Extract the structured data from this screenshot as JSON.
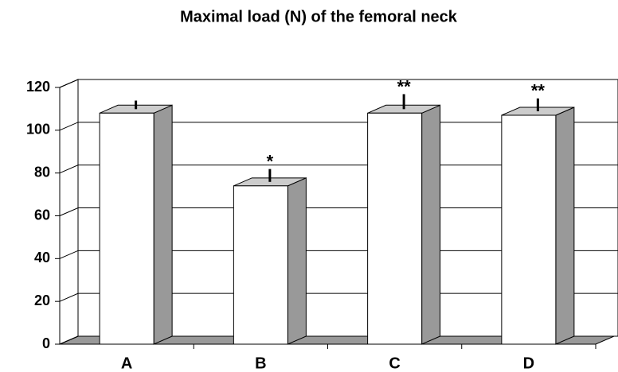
{
  "chart_data": {
    "type": "bar3d",
    "title": "Maximal load (N) of the femoral neck",
    "categories": [
      "A",
      "B",
      "C",
      "D"
    ],
    "values": [
      108,
      74,
      108,
      107
    ],
    "errors": [
      4,
      6,
      7,
      6
    ],
    "annotations": [
      null,
      "*",
      "**",
      "**"
    ],
    "color": "#ffffff",
    "ylim": [
      0,
      120
    ],
    "yticks": [
      0,
      20,
      40,
      60,
      80,
      100,
      120
    ],
    "grid": true
  }
}
